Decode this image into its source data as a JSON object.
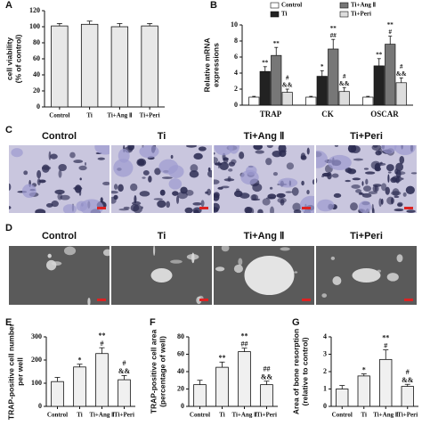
{
  "chart_data": [
    {
      "type": "bar",
      "label": "A",
      "ylabel": [
        "cell viability",
        "(% of control)"
      ],
      "categories": [
        "Control",
        "Ti",
        "Ti+Ang Ⅱ",
        "Ti+Peri"
      ],
      "values": [
        101,
        103,
        100,
        101
      ],
      "errors": [
        3,
        4,
        4,
        3
      ],
      "color": "#e8e8e8",
      "ylim": [
        0,
        120
      ],
      "yticks": [
        0,
        20,
        40,
        60,
        80,
        100,
        120
      ]
    },
    {
      "type": "grouped_bar",
      "label": "B",
      "ylabel": [
        "Relative mRNA",
        "expressions"
      ],
      "categories": [
        "TRAP",
        "CK",
        "OSCAR"
      ],
      "legend": "top-right",
      "ylim": [
        0,
        10
      ],
      "yticks": [
        0,
        2,
        4,
        6,
        8,
        10
      ],
      "series": [
        {
          "name": "Control",
          "color": "#ffffff",
          "values": [
            1,
            1,
            1
          ],
          "errors": [
            0.1,
            0.1,
            0.1
          ],
          "annotations": [
            [],
            [],
            []
          ]
        },
        {
          "name": "Ti",
          "color": "#222222",
          "values": [
            4.2,
            3.6,
            4.9
          ],
          "errors": [
            0.6,
            0.7,
            0.9
          ],
          "annotations": [
            [
              "**"
            ],
            [
              "*"
            ],
            [
              "**"
            ]
          ]
        },
        {
          "name": "Ti+Ang Ⅱ",
          "color": "#777777",
          "values": [
            6.2,
            7.0,
            7.6
          ],
          "errors": [
            1.0,
            1.2,
            1.0
          ],
          "annotations": [
            [
              "**"
            ],
            [
              "**",
              "##"
            ],
            [
              "**",
              "#"
            ]
          ]
        },
        {
          "name": "Ti+Peri",
          "color": "#dddddd",
          "values": [
            1.6,
            1.7,
            2.8
          ],
          "errors": [
            0.4,
            0.5,
            0.6
          ],
          "annotations": [
            [
              "#",
              "&&"
            ],
            [
              "#",
              "&&"
            ],
            [
              "#",
              "&&"
            ]
          ]
        }
      ]
    },
    {
      "type": "bar",
      "label": "E",
      "ylabel": [
        "TRAP-positive cell number",
        "per well"
      ],
      "categories": [
        "Control",
        "Ti",
        "Ti+Ang Ⅱ",
        "Ti+Peri"
      ],
      "values": [
        107,
        170,
        228,
        115
      ],
      "errors": [
        18,
        12,
        25,
        18
      ],
      "annotations": [
        [],
        [
          "*"
        ],
        [
          "**",
          "#"
        ],
        [
          "#",
          "&&"
        ]
      ],
      "color": "#f0f0f0",
      "ylim": [
        0,
        300
      ],
      "yticks": [
        0,
        100,
        200,
        300
      ]
    },
    {
      "type": "bar",
      "label": "F",
      "ylabel": [
        "TRAP-positive cell area",
        "(percentage of well)"
      ],
      "categories": [
        "Control",
        "Ti",
        "Ti+Ang Ⅱ",
        "Ti+Peri"
      ],
      "values": [
        25,
        45,
        63,
        25
      ],
      "errors": [
        5,
        6,
        4,
        4
      ],
      "annotations": [
        [],
        [
          "**"
        ],
        [
          "**",
          "##"
        ],
        [
          "##",
          "&&"
        ]
      ],
      "color": "#f0f0f0",
      "ylim": [
        0,
        80
      ],
      "yticks": [
        0,
        20,
        40,
        60,
        80
      ]
    },
    {
      "type": "bar",
      "label": "G",
      "ylabel": [
        "Area of bone resorption",
        "(relative to control)"
      ],
      "categories": [
        "Control",
        "Ti",
        "Ti+Ang Ⅱ",
        "Ti+Peri"
      ],
      "values": [
        1.0,
        1.75,
        2.7,
        1.15
      ],
      "errors": [
        0.2,
        0.12,
        0.55,
        0.12
      ],
      "annotations": [
        [],
        [
          "*"
        ],
        [
          "**",
          "#"
        ],
        [
          "#",
          "&&"
        ]
      ],
      "color": "#f0f0f0",
      "ylim": [
        0,
        4
      ],
      "yticks": [
        0,
        1,
        2,
        3,
        4
      ]
    }
  ],
  "micrographs": [
    {
      "label": "C",
      "captions": [
        "Control",
        "Ti",
        "Ti+Ang Ⅱ",
        "Ti+Peri"
      ]
    },
    {
      "label": "D",
      "captions": [
        "Control",
        "Ti",
        "Ti+Ang Ⅱ",
        "Ti+Peri"
      ]
    }
  ]
}
